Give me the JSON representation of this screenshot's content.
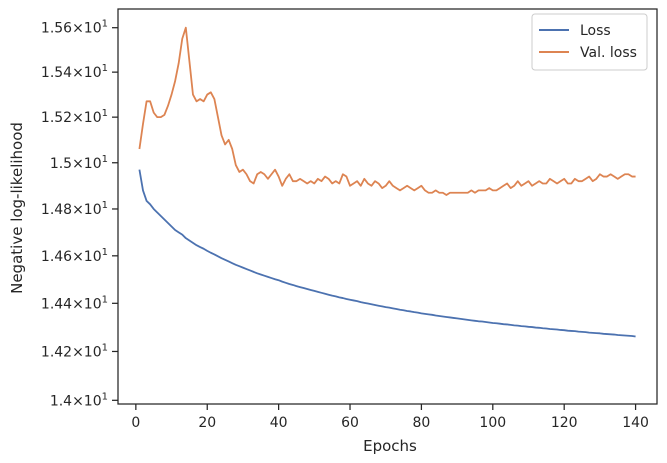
{
  "chart_data": {
    "type": "line",
    "title": "",
    "xlabel": "Epochs",
    "ylabel": "Negative log-likelihood",
    "xlim": [
      -5,
      146
    ],
    "ylim": [
      13.985,
      15.685
    ],
    "y_scale": "log",
    "grid": false,
    "legend_placement": "top-right",
    "x_ticks": [
      0,
      20,
      40,
      60,
      80,
      100,
      120,
      140
    ],
    "x_tick_labels": [
      "0",
      "20",
      "40",
      "60",
      "80",
      "100",
      "120",
      "140"
    ],
    "y_ticks": [
      14.0,
      14.2,
      14.4,
      14.6,
      14.8,
      15.0,
      15.2,
      15.4,
      15.6
    ],
    "y_tick_labels": [
      {
        "mantissa": "1.4",
        "base": "10",
        "exp": "1"
      },
      {
        "mantissa": "1.42",
        "base": "10",
        "exp": "1"
      },
      {
        "mantissa": "1.44",
        "base": "10",
        "exp": "1"
      },
      {
        "mantissa": "1.46",
        "base": "10",
        "exp": "1"
      },
      {
        "mantissa": "1.48",
        "base": "10",
        "exp": "1"
      },
      {
        "mantissa": "1.5",
        "base": "10",
        "exp": "1"
      },
      {
        "mantissa": "1.52",
        "base": "10",
        "exp": "1"
      },
      {
        "mantissa": "1.54",
        "base": "10",
        "exp": "1"
      },
      {
        "mantissa": "1.56",
        "base": "10",
        "exp": "1"
      }
    ],
    "x": [
      1,
      2,
      3,
      4,
      5,
      6,
      7,
      8,
      9,
      10,
      11,
      12,
      13,
      14,
      15,
      16,
      17,
      18,
      19,
      20,
      21,
      22,
      23,
      24,
      25,
      26,
      27,
      28,
      29,
      30,
      31,
      32,
      33,
      34,
      35,
      36,
      37,
      38,
      39,
      40,
      41,
      42,
      43,
      44,
      45,
      46,
      47,
      48,
      49,
      50,
      51,
      52,
      53,
      54,
      55,
      56,
      57,
      58,
      59,
      60,
      61,
      62,
      63,
      64,
      65,
      66,
      67,
      68,
      69,
      70,
      71,
      72,
      73,
      74,
      75,
      76,
      77,
      78,
      79,
      80,
      81,
      82,
      83,
      84,
      85,
      86,
      87,
      88,
      89,
      90,
      91,
      92,
      93,
      94,
      95,
      96,
      97,
      98,
      99,
      100,
      101,
      102,
      103,
      104,
      105,
      106,
      107,
      108,
      109,
      110,
      111,
      112,
      113,
      114,
      115,
      116,
      117,
      118,
      119,
      120,
      121,
      122,
      123,
      124,
      125,
      126,
      127,
      128,
      129,
      130,
      131,
      132,
      133,
      134,
      135,
      136,
      137,
      138,
      139,
      140
    ],
    "series": [
      {
        "name": "Loss",
        "color": "#4c72b0",
        "values": [
          14.97,
          14.88,
          14.835,
          14.82,
          14.8,
          14.785,
          14.77,
          14.755,
          14.74,
          14.725,
          14.71,
          14.7,
          14.69,
          14.675,
          14.665,
          14.655,
          14.645,
          14.637,
          14.63,
          14.621,
          14.613,
          14.606,
          14.598,
          14.59,
          14.583,
          14.576,
          14.569,
          14.562,
          14.556,
          14.55,
          14.544,
          14.538,
          14.532,
          14.526,
          14.521,
          14.516,
          14.511,
          14.506,
          14.501,
          14.497,
          14.491,
          14.486,
          14.481,
          14.477,
          14.472,
          14.468,
          14.464,
          14.46,
          14.456,
          14.452,
          14.448,
          14.444,
          14.44,
          14.436,
          14.432,
          14.429,
          14.425,
          14.422,
          14.418,
          14.415,
          14.412,
          14.409,
          14.405,
          14.402,
          14.399,
          14.396,
          14.393,
          14.39,
          14.387,
          14.384,
          14.382,
          14.379,
          14.376,
          14.373,
          14.371,
          14.368,
          14.366,
          14.363,
          14.361,
          14.358,
          14.356,
          14.354,
          14.352,
          14.349,
          14.347,
          14.345,
          14.343,
          14.341,
          14.339,
          14.337,
          14.335,
          14.333,
          14.331,
          14.329,
          14.327,
          14.325,
          14.324,
          14.322,
          14.32,
          14.318,
          14.317,
          14.315,
          14.313,
          14.312,
          14.31,
          14.308,
          14.307,
          14.305,
          14.304,
          14.302,
          14.301,
          14.299,
          14.298,
          14.296,
          14.295,
          14.293,
          14.292,
          14.291,
          14.289,
          14.288,
          14.286,
          14.285,
          14.284,
          14.282,
          14.281,
          14.28,
          14.278,
          14.277,
          14.276,
          14.275,
          14.273,
          14.272,
          14.271,
          14.27,
          14.268,
          14.267,
          14.266,
          14.265,
          14.264,
          14.262
        ]
      },
      {
        "name": "Val. loss",
        "color": "#dd8452",
        "values": [
          15.06,
          15.17,
          15.27,
          15.27,
          15.22,
          15.2,
          15.2,
          15.21,
          15.25,
          15.3,
          15.36,
          15.44,
          15.55,
          15.6,
          15.45,
          15.3,
          15.27,
          15.28,
          15.27,
          15.3,
          15.31,
          15.28,
          15.2,
          15.12,
          15.08,
          15.1,
          15.06,
          14.99,
          14.96,
          14.97,
          14.95,
          14.92,
          14.91,
          14.95,
          14.96,
          14.95,
          14.93,
          14.95,
          14.97,
          14.94,
          14.9,
          14.93,
          14.95,
          14.92,
          14.92,
          14.93,
          14.92,
          14.91,
          14.92,
          14.91,
          14.93,
          14.92,
          14.94,
          14.93,
          14.91,
          14.92,
          14.91,
          14.95,
          14.94,
          14.9,
          14.91,
          14.92,
          14.9,
          14.93,
          14.91,
          14.9,
          14.92,
          14.91,
          14.89,
          14.9,
          14.92,
          14.9,
          14.89,
          14.88,
          14.89,
          14.9,
          14.89,
          14.88,
          14.89,
          14.9,
          14.88,
          14.87,
          14.87,
          14.88,
          14.87,
          14.87,
          14.86,
          14.87,
          14.87,
          14.87,
          14.87,
          14.87,
          14.87,
          14.88,
          14.87,
          14.88,
          14.88,
          14.88,
          14.89,
          14.88,
          14.88,
          14.89,
          14.9,
          14.91,
          14.89,
          14.9,
          14.92,
          14.9,
          14.91,
          14.92,
          14.9,
          14.91,
          14.92,
          14.91,
          14.91,
          14.93,
          14.92,
          14.91,
          14.92,
          14.93,
          14.91,
          14.91,
          14.93,
          14.92,
          14.92,
          14.93,
          14.94,
          14.92,
          14.93,
          14.95,
          14.94,
          14.94,
          14.95,
          14.94,
          14.93,
          14.94,
          14.95,
          14.95,
          14.94,
          14.94
        ]
      }
    ]
  }
}
